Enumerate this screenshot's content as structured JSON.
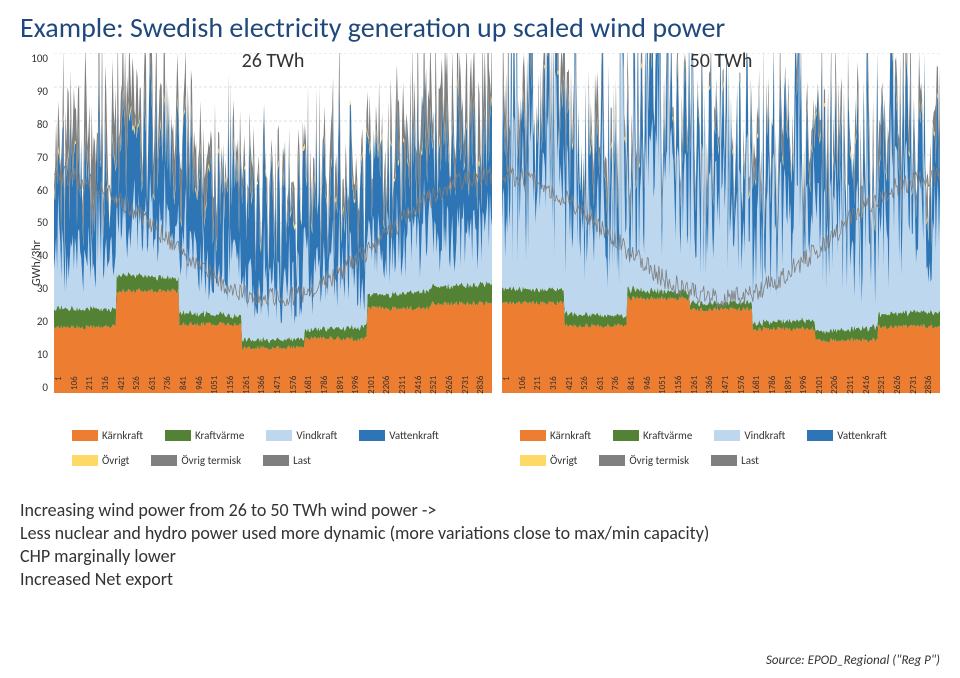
{
  "title": "Example: Swedish electricity generation up scaled wind power",
  "ylabel": "GWh/3hr",
  "yticks": [
    100,
    90,
    80,
    70,
    60,
    50,
    40,
    30,
    20,
    10,
    0
  ],
  "grid_color": "#bfbfbf",
  "background_color": "#ffffff",
  "panels": [
    {
      "subtitle": "26 TWh",
      "seed": 26
    },
    {
      "subtitle": "50 TWh",
      "seed": 50
    }
  ],
  "xticks": [
    "1",
    "106",
    "211",
    "316",
    "421",
    "526",
    "631",
    "736",
    "841",
    "946",
    "1051",
    "1156",
    "1261",
    "1366",
    "1471",
    "1576",
    "1681",
    "1786",
    "1891",
    "1996",
    "2101",
    "2206",
    "2311",
    "2416",
    "2521",
    "2626",
    "2731",
    "2836"
  ],
  "legend_rows": [
    [
      {
        "label": "Kärnkraft",
        "color": "#ed7d31"
      },
      {
        "label": "Kraftvärme",
        "color": "#548235"
      },
      {
        "label": "Vindkraft",
        "color": "#bdd7ee"
      },
      {
        "label": "Vattenkraft",
        "color": "#2e75b6"
      }
    ],
    [
      {
        "label": "Övrigt",
        "color": "#ffd966"
      },
      {
        "label": "Övrig termisk",
        "color": "#808080"
      },
      {
        "label": "Last",
        "color": "#7f7f7f"
      }
    ]
  ],
  "series_colors": {
    "karnkraft": "#ed7d31",
    "kraftvarme": "#548235",
    "vindkraft": "#bdd7ee",
    "vattenkraft": "#2e75b6",
    "ovrigt": "#ffd966",
    "ovrig_termisk": "#808080",
    "last": "#7f7f7f"
  },
  "chart": {
    "type": "stacked-area",
    "ylim": [
      0,
      100
    ],
    "n_points": 420,
    "base_levels_26": {
      "karnkraft": 22,
      "kraftvarme": 4,
      "vindkraft": 12,
      "vattenkraft": 22,
      "ovrigt": 1,
      "ovrig_termisk": 14
    },
    "base_levels_50": {
      "karnkraft": 20,
      "kraftvarme": 3,
      "vindkraft": 24,
      "vattenkraft": 18,
      "ovrigt": 1,
      "ovrig_termisk": 9
    }
  },
  "notes": [
    "Increasing wind power from 26 to 50 TWh wind power ->",
    "Less nuclear and hydro power used more dynamic (more variations close to max/min capacity)",
    "CHP marginally lower",
    "Increased Net export"
  ],
  "source": "Source: EPOD_Regional (\"Reg P\")"
}
